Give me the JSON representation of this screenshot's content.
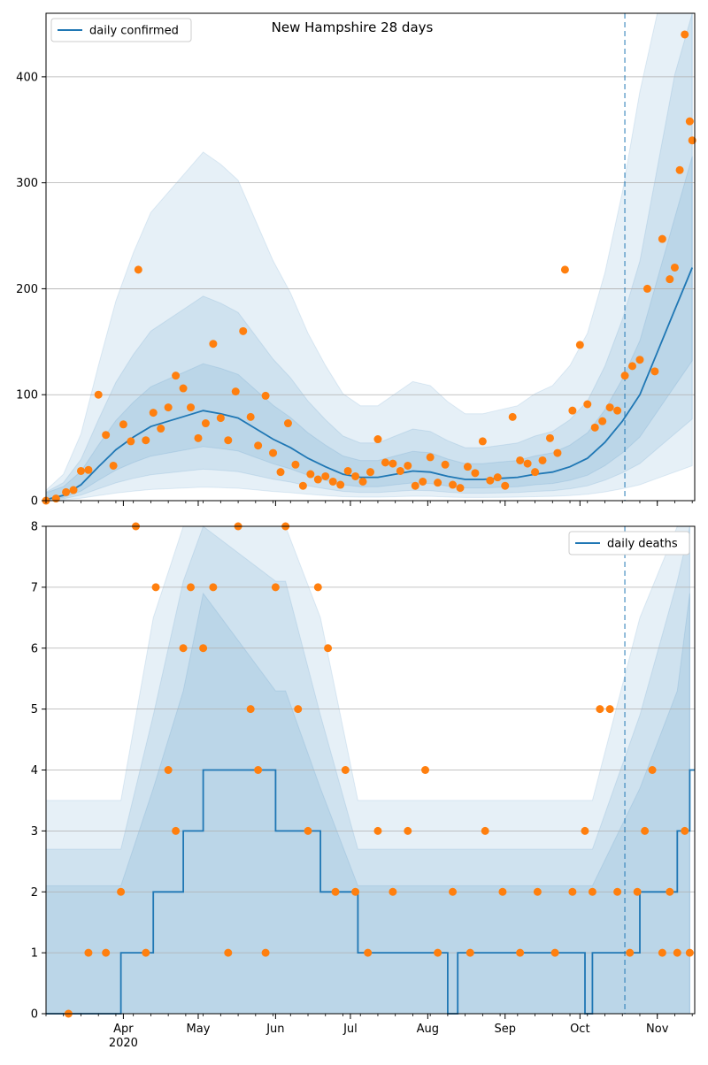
{
  "chart_data": [
    {
      "type": "line",
      "title": "New Hampshire 28 days",
      "xlabel": "",
      "ylabel": "",
      "ylim": [
        0,
        460
      ],
      "yticks": [
        0,
        100,
        200,
        300,
        400
      ],
      "grid": "y",
      "legend": {
        "placement": "top-left",
        "entries": [
          "daily confirmed"
        ]
      },
      "vline_date": "2020-10-19",
      "series": [
        {
          "name": "daily confirmed",
          "kind": "line",
          "color": "#1f77b4",
          "points": [
            [
              "2020-03-01",
              1
            ],
            [
              "2020-03-08",
              5
            ],
            [
              "2020-03-15",
              15
            ],
            [
              "2020-03-22",
              32
            ],
            [
              "2020-03-29",
              48
            ],
            [
              "2020-04-05",
              60
            ],
            [
              "2020-04-12",
              70
            ],
            [
              "2020-04-19",
              75
            ],
            [
              "2020-04-26",
              80
            ],
            [
              "2020-05-03",
              85
            ],
            [
              "2020-05-10",
              82
            ],
            [
              "2020-05-17",
              78
            ],
            [
              "2020-05-24",
              68
            ],
            [
              "2020-05-31",
              58
            ],
            [
              "2020-06-07",
              50
            ],
            [
              "2020-06-14",
              40
            ],
            [
              "2020-06-21",
              32
            ],
            [
              "2020-06-28",
              25
            ],
            [
              "2020-07-05",
              22
            ],
            [
              "2020-07-12",
              22
            ],
            [
              "2020-07-19",
              25
            ],
            [
              "2020-07-26",
              28
            ],
            [
              "2020-08-02",
              27
            ],
            [
              "2020-08-09",
              23
            ],
            [
              "2020-08-16",
              20
            ],
            [
              "2020-08-23",
              20
            ],
            [
              "2020-08-30",
              21
            ],
            [
              "2020-09-06",
              22
            ],
            [
              "2020-09-13",
              25
            ],
            [
              "2020-09-20",
              27
            ],
            [
              "2020-09-27",
              32
            ],
            [
              "2020-10-04",
              40
            ],
            [
              "2020-10-11",
              55
            ],
            [
              "2020-10-18",
              75
            ],
            [
              "2020-10-25",
              100
            ],
            [
              "2020-11-01",
              140
            ],
            [
              "2020-11-08",
              180
            ],
            [
              "2020-11-15",
              220
            ]
          ]
        },
        {
          "name": "",
          "kind": "scatter",
          "color": "#ff7f0e",
          "points": [
            [
              "2020-03-01",
              0
            ],
            [
              "2020-03-05",
              2
            ],
            [
              "2020-03-09",
              8
            ],
            [
              "2020-03-12",
              10
            ],
            [
              "2020-03-15",
              28
            ],
            [
              "2020-03-18",
              29
            ],
            [
              "2020-03-22",
              100
            ],
            [
              "2020-03-25",
              62
            ],
            [
              "2020-03-28",
              33
            ],
            [
              "2020-04-01",
              72
            ],
            [
              "2020-04-04",
              56
            ],
            [
              "2020-04-07",
              218
            ],
            [
              "2020-04-10",
              57
            ],
            [
              "2020-04-13",
              83
            ],
            [
              "2020-04-16",
              68
            ],
            [
              "2020-04-19",
              88
            ],
            [
              "2020-04-22",
              118
            ],
            [
              "2020-04-25",
              106
            ],
            [
              "2020-04-28",
              88
            ],
            [
              "2020-05-01",
              59
            ],
            [
              "2020-05-04",
              73
            ],
            [
              "2020-05-07",
              148
            ],
            [
              "2020-05-10",
              78
            ],
            [
              "2020-05-13",
              57
            ],
            [
              "2020-05-16",
              103
            ],
            [
              "2020-05-19",
              160
            ],
            [
              "2020-05-22",
              79
            ],
            [
              "2020-05-25",
              52
            ],
            [
              "2020-05-28",
              99
            ],
            [
              "2020-05-31",
              45
            ],
            [
              "2020-06-03",
              27
            ],
            [
              "2020-06-06",
              73
            ],
            [
              "2020-06-09",
              34
            ],
            [
              "2020-06-12",
              14
            ],
            [
              "2020-06-15",
              25
            ],
            [
              "2020-06-18",
              20
            ],
            [
              "2020-06-21",
              23
            ],
            [
              "2020-06-24",
              18
            ],
            [
              "2020-06-27",
              15
            ],
            [
              "2020-06-30",
              28
            ],
            [
              "2020-07-03",
              23
            ],
            [
              "2020-07-06",
              18
            ],
            [
              "2020-07-09",
              27
            ],
            [
              "2020-07-12",
              58
            ],
            [
              "2020-07-15",
              36
            ],
            [
              "2020-07-18",
              35
            ],
            [
              "2020-07-21",
              28
            ],
            [
              "2020-07-24",
              33
            ],
            [
              "2020-07-27",
              14
            ],
            [
              "2020-07-30",
              18
            ],
            [
              "2020-08-02",
              41
            ],
            [
              "2020-08-05",
              17
            ],
            [
              "2020-08-08",
              34
            ],
            [
              "2020-08-11",
              15
            ],
            [
              "2020-08-14",
              12
            ],
            [
              "2020-08-17",
              32
            ],
            [
              "2020-08-20",
              26
            ],
            [
              "2020-08-23",
              56
            ],
            [
              "2020-08-26",
              19
            ],
            [
              "2020-08-29",
              22
            ],
            [
              "2020-09-01",
              14
            ],
            [
              "2020-09-04",
              79
            ],
            [
              "2020-09-07",
              38
            ],
            [
              "2020-09-10",
              35
            ],
            [
              "2020-09-13",
              27
            ],
            [
              "2020-09-16",
              38
            ],
            [
              "2020-09-19",
              59
            ],
            [
              "2020-09-22",
              45
            ],
            [
              "2020-09-25",
              218
            ],
            [
              "2020-09-28",
              85
            ],
            [
              "2020-10-01",
              147
            ],
            [
              "2020-10-04",
              91
            ],
            [
              "2020-10-07",
              69
            ],
            [
              "2020-10-10",
              75
            ],
            [
              "2020-10-13",
              88
            ],
            [
              "2020-10-16",
              85
            ],
            [
              "2020-10-19",
              118
            ],
            [
              "2020-10-22",
              127
            ],
            [
              "2020-10-25",
              133
            ],
            [
              "2020-10-28",
              200
            ],
            [
              "2020-10-31",
              122
            ],
            [
              "2020-11-03",
              247
            ],
            [
              "2020-11-06",
              209
            ],
            [
              "2020-11-08",
              220
            ],
            [
              "2020-11-10",
              312
            ],
            [
              "2020-11-12",
              440
            ],
            [
              "2020-11-14",
              358
            ],
            [
              "2020-11-15",
              340
            ]
          ]
        }
      ]
    },
    {
      "type": "line",
      "title": "",
      "xlabel": "",
      "ylabel": "",
      "ylim": [
        0,
        8
      ],
      "yticks": [
        0,
        1,
        2,
        3,
        4,
        5,
        6,
        7,
        8
      ],
      "grid": "y",
      "legend": {
        "placement": "top-right",
        "entries": [
          "daily deaths"
        ]
      },
      "vline_date": "2020-10-19",
      "xticks": [
        {
          "date": "2020-04-01",
          "label": "Apr",
          "sublabel": "2020"
        },
        {
          "date": "2020-05-01",
          "label": "May",
          "sublabel": ""
        },
        {
          "date": "2020-06-01",
          "label": "Jun",
          "sublabel": ""
        },
        {
          "date": "2020-07-01",
          "label": "Jul",
          "sublabel": ""
        },
        {
          "date": "2020-08-01",
          "label": "Aug",
          "sublabel": ""
        },
        {
          "date": "2020-09-01",
          "label": "Sep",
          "sublabel": ""
        },
        {
          "date": "2020-10-01",
          "label": "Oct",
          "sublabel": ""
        },
        {
          "date": "2020-11-01",
          "label": "Nov",
          "sublabel": ""
        }
      ],
      "series": [
        {
          "name": "daily deaths",
          "kind": "step",
          "color": "#1f77b4",
          "points": [
            [
              "2020-03-01",
              0
            ],
            [
              "2020-03-31",
              1
            ],
            [
              "2020-04-13",
              2
            ],
            [
              "2020-04-25",
              3
            ],
            [
              "2020-05-03",
              4
            ],
            [
              "2020-06-01",
              3
            ],
            [
              "2020-06-05",
              3
            ],
            [
              "2020-06-19",
              2
            ],
            [
              "2020-07-04",
              1
            ],
            [
              "2020-08-09",
              0
            ],
            [
              "2020-08-13",
              1
            ],
            [
              "2020-10-03",
              0
            ],
            [
              "2020-10-06",
              1
            ],
            [
              "2020-10-25",
              2
            ],
            [
              "2020-11-09",
              3
            ],
            [
              "2020-11-14",
              4
            ]
          ]
        },
        {
          "name": "",
          "kind": "scatter",
          "color": "#ff7f0e",
          "points": [
            [
              "2020-03-10",
              0
            ],
            [
              "2020-03-18",
              1
            ],
            [
              "2020-03-25",
              1
            ],
            [
              "2020-03-31",
              2
            ],
            [
              "2020-04-06",
              8
            ],
            [
              "2020-04-10",
              1
            ],
            [
              "2020-04-14",
              7
            ],
            [
              "2020-04-19",
              4
            ],
            [
              "2020-04-22",
              3
            ],
            [
              "2020-04-25",
              6
            ],
            [
              "2020-04-28",
              7
            ],
            [
              "2020-05-03",
              6
            ],
            [
              "2020-05-07",
              7
            ],
            [
              "2020-05-13",
              1
            ],
            [
              "2020-05-17",
              8
            ],
            [
              "2020-05-22",
              5
            ],
            [
              "2020-05-25",
              4
            ],
            [
              "2020-05-28",
              1
            ],
            [
              "2020-06-01",
              7
            ],
            [
              "2020-06-05",
              8
            ],
            [
              "2020-06-10",
              5
            ],
            [
              "2020-06-14",
              3
            ],
            [
              "2020-06-18",
              7
            ],
            [
              "2020-06-22",
              6
            ],
            [
              "2020-06-25",
              2
            ],
            [
              "2020-06-29",
              4
            ],
            [
              "2020-07-03",
              2
            ],
            [
              "2020-07-08",
              1
            ],
            [
              "2020-07-12",
              3
            ],
            [
              "2020-07-18",
              2
            ],
            [
              "2020-07-24",
              3
            ],
            [
              "2020-07-31",
              4
            ],
            [
              "2020-08-05",
              1
            ],
            [
              "2020-08-11",
              2
            ],
            [
              "2020-08-18",
              1
            ],
            [
              "2020-08-24",
              3
            ],
            [
              "2020-08-31",
              2
            ],
            [
              "2020-09-07",
              1
            ],
            [
              "2020-09-14",
              2
            ],
            [
              "2020-09-21",
              1
            ],
            [
              "2020-09-28",
              2
            ],
            [
              "2020-10-03",
              3
            ],
            [
              "2020-10-06",
              2
            ],
            [
              "2020-10-09",
              5
            ],
            [
              "2020-10-13",
              5
            ],
            [
              "2020-10-16",
              2
            ],
            [
              "2020-10-21",
              1
            ],
            [
              "2020-10-24",
              2
            ],
            [
              "2020-10-27",
              3
            ],
            [
              "2020-10-30",
              4
            ],
            [
              "2020-11-03",
              1
            ],
            [
              "2020-11-06",
              2
            ],
            [
              "2020-11-09",
              1
            ],
            [
              "2020-11-12",
              3
            ],
            [
              "2020-11-14",
              1
            ]
          ]
        }
      ]
    }
  ]
}
